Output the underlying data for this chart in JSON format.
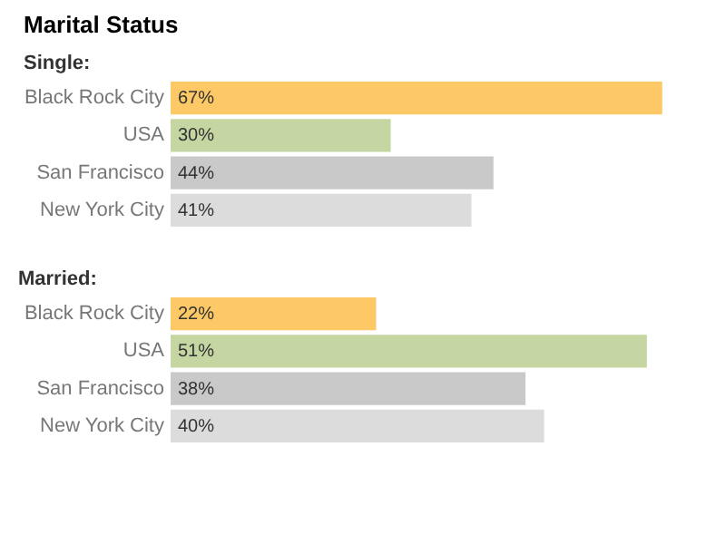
{
  "chart_data": [
    {
      "type": "bar",
      "orientation": "horizontal",
      "title": "Marital Status",
      "subtitle": "Single:",
      "categories": [
        "Black Rock City",
        "USA",
        "San Francisco",
        "New York City"
      ],
      "values": [
        67,
        30,
        44,
        41
      ],
      "value_labels": [
        "67%",
        "30%",
        "44%",
        "41%"
      ],
      "colors": [
        "#fdc966",
        "#c6d6a2",
        "#c9c9c9",
        "#dcdcdc"
      ],
      "tick_labels": "y",
      "grid": false,
      "legend": false
    },
    {
      "type": "bar",
      "orientation": "horizontal",
      "title": "Married:",
      "categories": [
        "Black Rock City",
        "USA",
        "San Francisco",
        "New York City"
      ],
      "values": [
        22,
        51,
        38,
        40
      ],
      "value_labels": [
        "22%",
        "51%",
        "38%",
        "40%"
      ],
      "colors": [
        "#fdc966",
        "#c6d6a2",
        "#c9c9c9",
        "#dcdcdc"
      ],
      "tick_labels": "y",
      "grid": false,
      "legend": false
    }
  ]
}
